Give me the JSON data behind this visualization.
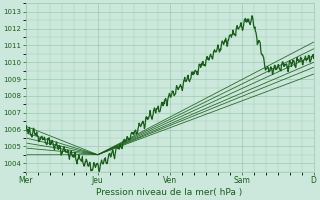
{
  "xlabel": "Pression niveau de la mer( hPa )",
  "ylim": [
    1003.5,
    1013.5
  ],
  "yticks": [
    1004,
    1005,
    1006,
    1007,
    1008,
    1009,
    1010,
    1011,
    1012,
    1013
  ],
  "bg_color": "#cce8dc",
  "grid_color": "#99ccaa",
  "line_color": "#1a5c1a",
  "tick_label_color": "#1a5c1a",
  "label_color": "#1a5c1a",
  "day_labels": [
    "Mer",
    "Jeu",
    "Ven",
    "Sam",
    "D"
  ],
  "day_positions": [
    0,
    1,
    2,
    3,
    4
  ],
  "xlim": [
    0,
    4.0
  ],
  "figsize": [
    3.2,
    2.0
  ],
  "dpi": 100
}
